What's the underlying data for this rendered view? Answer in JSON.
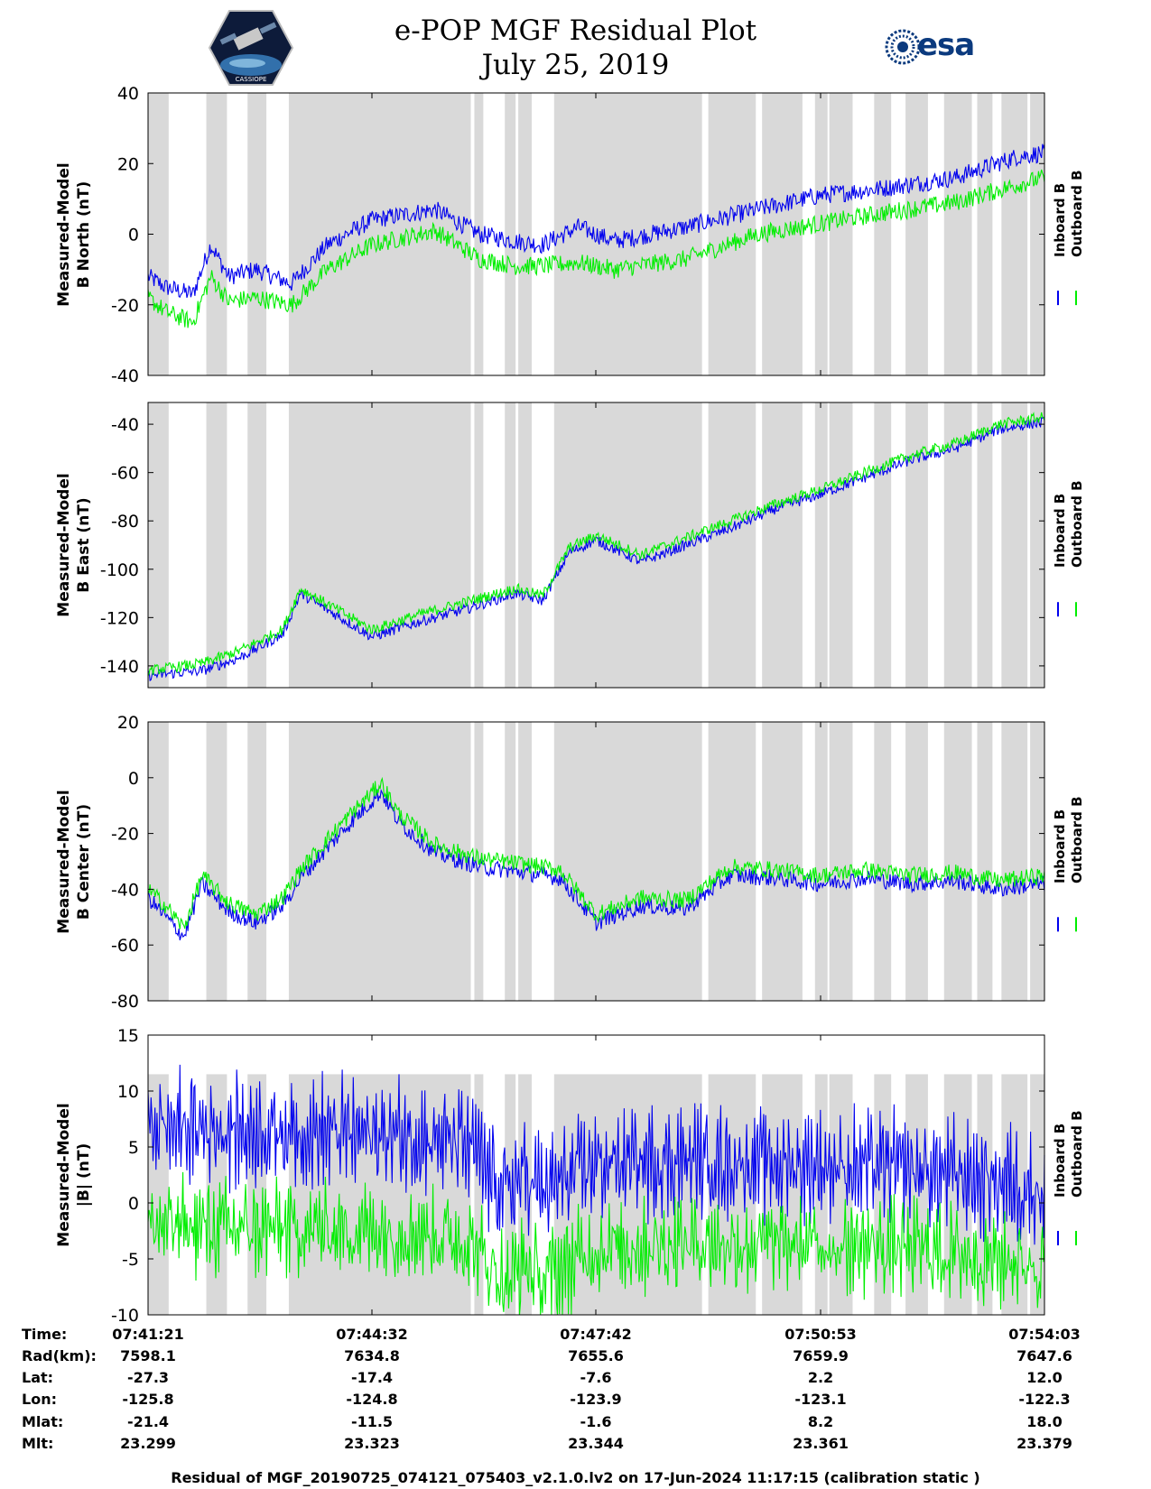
{
  "title": "e-POP MGF Residual Plot",
  "date": "July 25, 2019",
  "logos": {
    "left": "cassiope-satellite-logo",
    "left_text": "CASSIOPE",
    "right_text": "esa"
  },
  "colors": {
    "inboard": "#0000ee",
    "outboard": "#00ee00",
    "gap": "#d9d9d9"
  },
  "chart_data": [
    {
      "type": "line",
      "ylabel_line1": "Measured-Model",
      "ylabel_line2": "B North (nT)",
      "ylim": [
        -40,
        40
      ],
      "yticks": [
        "40",
        "20",
        "0",
        "-20",
        "-40"
      ],
      "series": [
        {
          "name": "Inboard B",
          "color": "#0000ee",
          "x": [
            0,
            0.02,
            0.05,
            0.07,
            0.09,
            0.12,
            0.16,
            0.2,
            0.25,
            0.32,
            0.37,
            0.41,
            0.44,
            0.48,
            0.52,
            0.6,
            0.68,
            0.75,
            0.82,
            0.9,
            0.97,
            1
          ],
          "values": [
            -12,
            -15,
            -17,
            -3,
            -12,
            -10,
            -14,
            -3,
            4,
            7,
            0,
            -2,
            -3,
            2,
            -2,
            2,
            7,
            11,
            13,
            16,
            22,
            23
          ]
        },
        {
          "name": "Outboard B",
          "color": "#00ee00",
          "x": [
            0,
            0.02,
            0.05,
            0.07,
            0.09,
            0.12,
            0.16,
            0.2,
            0.25,
            0.32,
            0.37,
            0.41,
            0.44,
            0.48,
            0.52,
            0.6,
            0.68,
            0.75,
            0.82,
            0.9,
            0.97,
            1
          ],
          "values": [
            -18,
            -22,
            -25,
            -12,
            -19,
            -18,
            -20,
            -10,
            -3,
            1,
            -7,
            -9,
            -9,
            -8,
            -10,
            -7,
            0,
            3,
            6,
            9,
            14,
            16
          ]
        }
      ]
    },
    {
      "type": "line",
      "ylabel_line1": "Measured-Model",
      "ylabel_line2": "B East (nT)",
      "ylim": [
        -149,
        -31
      ],
      "yticks": [
        "-40",
        "-60",
        "-80",
        "-100",
        "-120",
        "-140"
      ],
      "series": [
        {
          "name": "Inboard B",
          "color": "#0000ee",
          "x": [
            0,
            0.06,
            0.1,
            0.15,
            0.17,
            0.25,
            0.3,
            0.35,
            0.41,
            0.44,
            0.47,
            0.5,
            0.55,
            0.6,
            0.65,
            0.7,
            0.75,
            0.8,
            0.85,
            0.9,
            0.95,
            1
          ],
          "values": [
            -144,
            -142,
            -137,
            -127,
            -110,
            -128,
            -122,
            -117,
            -110,
            -113,
            -93,
            -88,
            -97,
            -90,
            -83,
            -75,
            -69,
            -62,
            -55,
            -50,
            -42,
            -39
          ]
        },
        {
          "name": "Outboard B",
          "color": "#00ee00",
          "x": [
            0,
            0.06,
            0.1,
            0.15,
            0.17,
            0.25,
            0.3,
            0.35,
            0.41,
            0.44,
            0.47,
            0.5,
            0.55,
            0.6,
            0.65,
            0.7,
            0.75,
            0.8,
            0.85,
            0.9,
            0.95,
            1
          ],
          "values": [
            -142,
            -139,
            -134,
            -125,
            -108,
            -125,
            -119,
            -114,
            -108,
            -111,
            -91,
            -86,
            -94,
            -87,
            -80,
            -73,
            -67,
            -60,
            -53,
            -48,
            -40,
            -37
          ]
        }
      ]
    },
    {
      "type": "line",
      "ylabel_line1": "Measured-Model",
      "ylabel_line2": "B Center (nT)",
      "ylim": [
        -80,
        20
      ],
      "yticks": [
        "20",
        "0",
        "-20",
        "-40",
        "-60",
        "-80"
      ],
      "series": [
        {
          "name": "Inboard B",
          "color": "#0000ee",
          "x": [
            0,
            0.02,
            0.04,
            0.06,
            0.09,
            0.12,
            0.15,
            0.17,
            0.22,
            0.26,
            0.28,
            0.32,
            0.37,
            0.42,
            0.46,
            0.48,
            0.5,
            0.55,
            0.6,
            0.65,
            0.7,
            0.75,
            0.8,
            0.85,
            0.9,
            0.95,
            1
          ],
          "values": [
            -43,
            -50,
            -57,
            -38,
            -48,
            -52,
            -46,
            -36,
            -18,
            -5,
            -16,
            -27,
            -32,
            -34,
            -36,
            -44,
            -52,
            -46,
            -47,
            -35,
            -36,
            -38,
            -36,
            -38,
            -37,
            -40,
            -38
          ]
        },
        {
          "name": "Outboard B",
          "color": "#00ee00",
          "x": [
            0,
            0.02,
            0.04,
            0.06,
            0.09,
            0.12,
            0.15,
            0.17,
            0.22,
            0.26,
            0.28,
            0.32,
            0.37,
            0.42,
            0.46,
            0.48,
            0.5,
            0.55,
            0.6,
            0.65,
            0.7,
            0.75,
            0.8,
            0.85,
            0.9,
            0.95,
            1
          ],
          "values": [
            -40,
            -46,
            -54,
            -35,
            -45,
            -49,
            -43,
            -33,
            -15,
            -2,
            -13,
            -24,
            -29,
            -31,
            -33,
            -41,
            -49,
            -43,
            -44,
            -32,
            -33,
            -35,
            -33,
            -35,
            -34,
            -37,
            -35
          ]
        }
      ]
    },
    {
      "type": "line",
      "ylabel_line1": "Measured-Model",
      "ylabel_line2": "|B| (nT)",
      "ylim": [
        -10,
        15
      ],
      "yticks": [
        "15",
        "10",
        "5",
        "0",
        "-5",
        "-10"
      ],
      "series": [
        {
          "name": "Inboard B",
          "color": "#0000ee",
          "x": [
            0,
            0.1,
            0.2,
            0.3,
            0.36,
            0.38,
            0.4,
            0.42,
            0.44,
            0.5,
            0.6,
            0.7,
            0.8,
            0.9,
            0.95,
            1
          ],
          "values": [
            7,
            6.5,
            6.3,
            6,
            5,
            2.5,
            1,
            2.5,
            1,
            3.5,
            3.8,
            3.5,
            3.3,
            2.5,
            2,
            1
          ]
        },
        {
          "name": "Outboard B",
          "color": "#00ee00",
          "x": [
            0,
            0.1,
            0.2,
            0.3,
            0.36,
            0.38,
            0.4,
            0.42,
            0.44,
            0.5,
            0.6,
            0.7,
            0.8,
            0.9,
            0.95,
            1
          ],
          "values": [
            -2,
            -2.3,
            -2.4,
            -2.5,
            -3.5,
            -5.5,
            -7,
            -5.5,
            -7,
            -4,
            -3.5,
            -3.8,
            -3.8,
            -4.5,
            -5,
            -5.5
          ]
        }
      ]
    }
  ],
  "gap_intervals": [
    [
      0,
      0.023
    ],
    [
      0.065,
      0.088
    ],
    [
      0.111,
      0.132
    ],
    [
      0.157,
      0.36
    ],
    [
      0.364,
      0.374
    ],
    [
      0.398,
      0.41
    ],
    [
      0.413,
      0.428
    ],
    [
      0.453,
      0.618
    ],
    [
      0.625,
      0.678
    ],
    [
      0.685,
      0.73
    ],
    [
      0.744,
      0.758
    ],
    [
      0.76,
      0.786
    ],
    [
      0.81,
      0.829
    ],
    [
      0.845,
      0.87
    ],
    [
      0.888,
      0.919
    ],
    [
      0.925,
      0.942
    ],
    [
      0.952,
      0.981
    ],
    [
      0.984,
      1
    ]
  ],
  "x_axis": {
    "row_labels": [
      "Time:",
      "Rad(km):",
      "Lat:",
      "Lon:",
      "Mlat:",
      "Mlt:"
    ],
    "columns": [
      [
        "07:41:21",
        "7598.1",
        "-27.3",
        "-125.8",
        "-21.4",
        "23.299"
      ],
      [
        "07:44:32",
        "7634.8",
        "-17.4",
        "-124.8",
        "-11.5",
        "23.323"
      ],
      [
        "07:47:42",
        "7655.6",
        "-7.6",
        "-123.9",
        "-1.6",
        "23.344"
      ],
      [
        "07:50:53",
        "7659.9",
        "2.2",
        "-123.1",
        "8.2",
        "23.361"
      ],
      [
        "07:54:03",
        "7647.6",
        "12.0",
        "-122.3",
        "18.0",
        "23.379"
      ]
    ]
  },
  "legend": {
    "inboard": "Inboard B",
    "outboard": "Outboard B"
  },
  "footer": "Residual of MGF_20190725_074121_075403_v2.1.0.lv2 on 17-Jun-2024 11:17:15 (calibration static )"
}
